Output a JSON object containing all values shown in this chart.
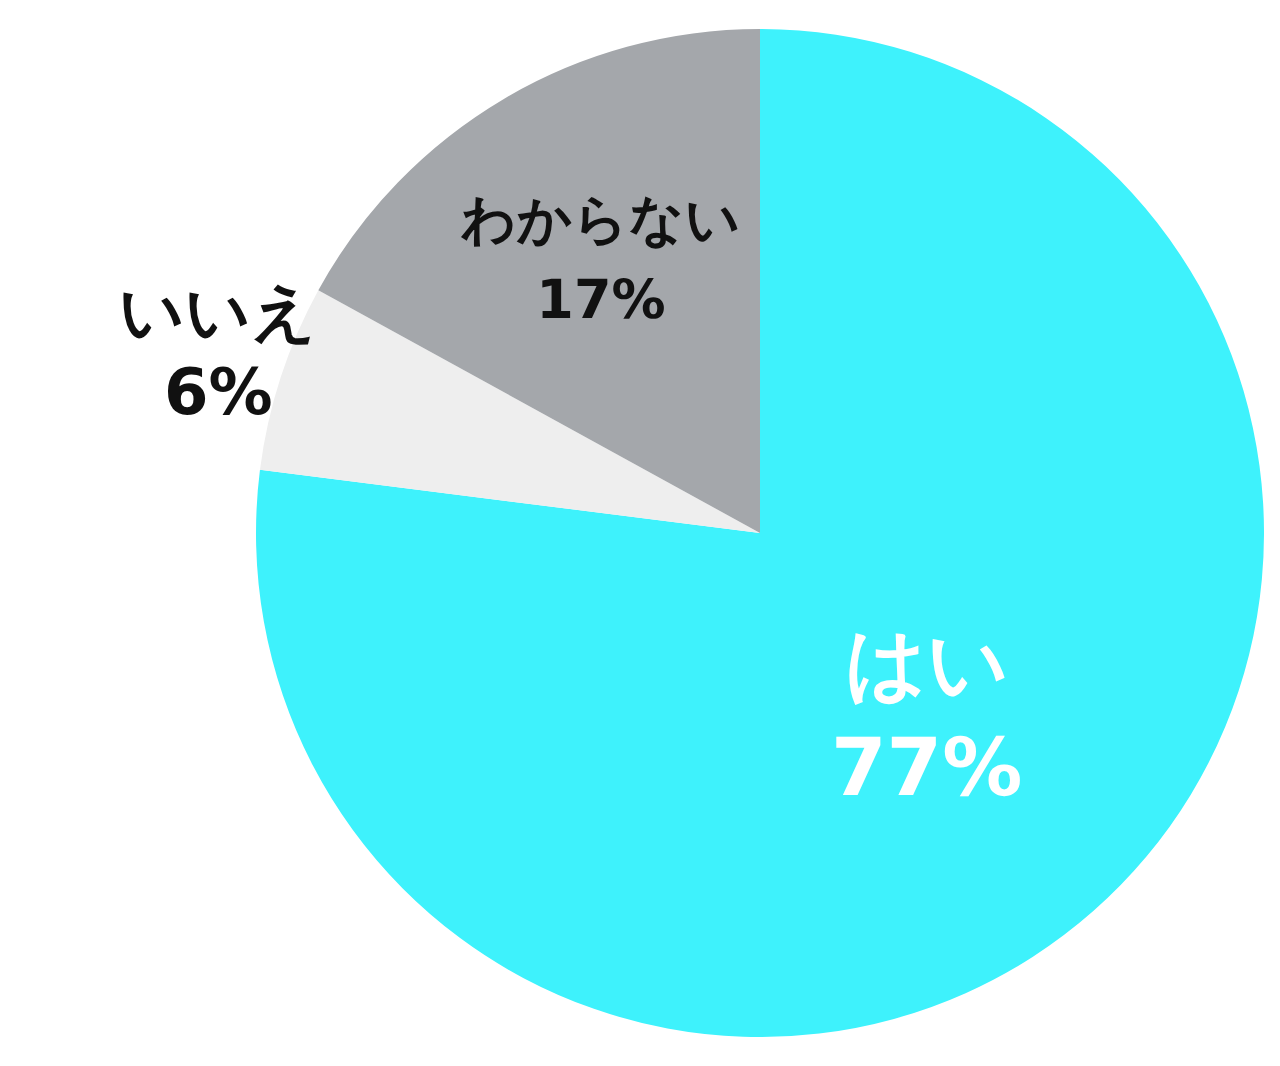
{
  "chart_data": {
    "type": "pie",
    "categories": [
      "はい",
      "いいえ",
      "わからない"
    ],
    "values": [
      77,
      6,
      17
    ],
    "colors": [
      "#3ef2fc",
      "#eeeeee",
      "#a4a7ab"
    ],
    "value_labels": [
      "77%",
      "6%",
      "17%"
    ]
  }
}
